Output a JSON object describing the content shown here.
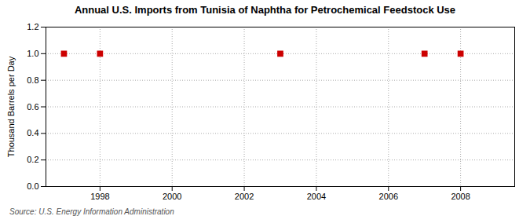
{
  "chart_data": {
    "type": "scatter",
    "title": "Annual U.S. Imports from Tunisia of Naphtha for Petrochemical Feedstock Use",
    "ylabel": "Thousand Barrels per Day",
    "annotations": [
      "Source: U.S. Energy Information Administration"
    ],
    "x": [
      1997,
      1998,
      2003,
      2007,
      2008
    ],
    "values": [
      1.0,
      1.0,
      1.0,
      1.0,
      1.0
    ],
    "color": "#cc0000",
    "marker": "square",
    "xlim": [
      1996.5,
      2009.5
    ],
    "xticks": [
      1998,
      2000,
      2002,
      2004,
      2006,
      2008
    ],
    "ylim": [
      0.0,
      1.2
    ],
    "yticks": [
      {
        "value": 0.0,
        "label": "0.0"
      },
      0.2,
      0.4,
      0.6,
      0.8,
      {
        "value": 1.0,
        "label": "1.0"
      },
      1.2
    ],
    "grid": true
  }
}
